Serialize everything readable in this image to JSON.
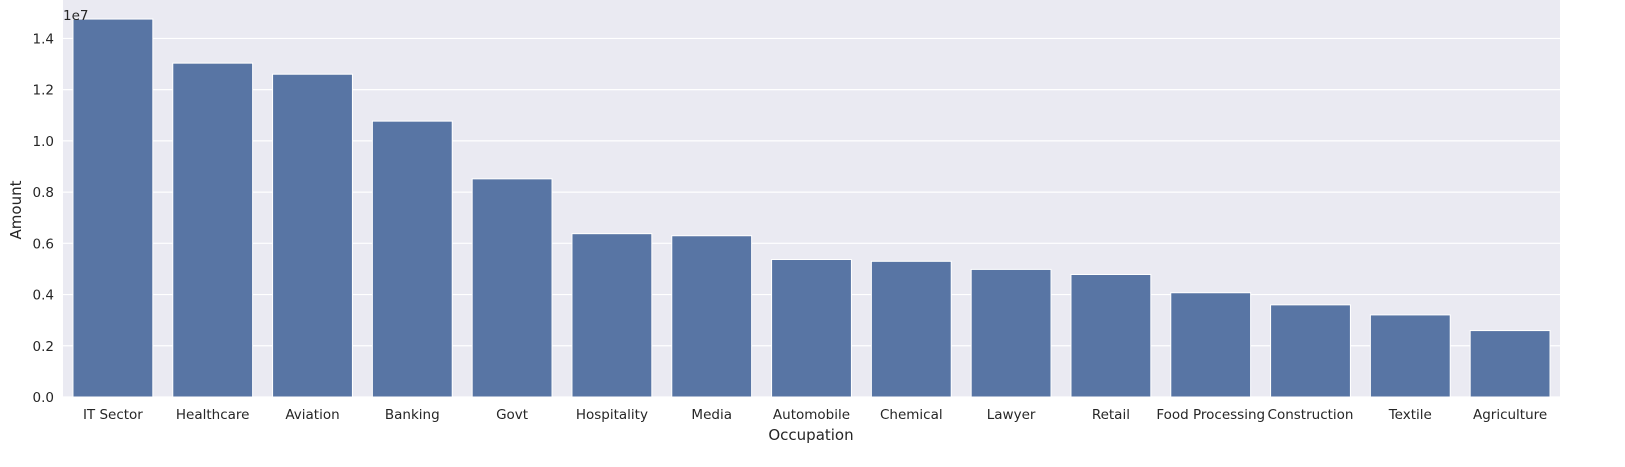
{
  "chart_data": {
    "type": "bar",
    "title": "",
    "xlabel": "Occupation",
    "ylabel": "Amount",
    "y_offset_label": "1e7",
    "categories": [
      "IT Sector",
      "Healthcare",
      "Aviation",
      "Banking",
      "Govt",
      "Hospitality",
      "Media",
      "Automobile",
      "Chemical",
      "Lawyer",
      "Retail",
      "Food Processing",
      "Construction",
      "Textile",
      "Agriculture"
    ],
    "values": [
      14755739,
      13034586,
      12602298,
      10770610,
      8517212,
      6376405,
      6295833,
      5368596,
      5297436,
      4981665,
      4783170,
      4070670,
      3597511,
      3204972,
      2593087
    ],
    "ylim": [
      0,
      15500000
    ],
    "yticks": [
      0,
      2000000,
      4000000,
      6000000,
      8000000,
      10000000,
      12000000,
      14000000
    ],
    "ytick_labels": [
      "0.0",
      "0.2",
      "0.4",
      "0.6",
      "0.8",
      "1.0",
      "1.2",
      "1.4"
    ],
    "grid": true,
    "colors": {
      "bar": "#5875a4",
      "plot_background": "#eaeaf2",
      "grid": "#ffffff",
      "page_background": "#ffffff"
    }
  }
}
